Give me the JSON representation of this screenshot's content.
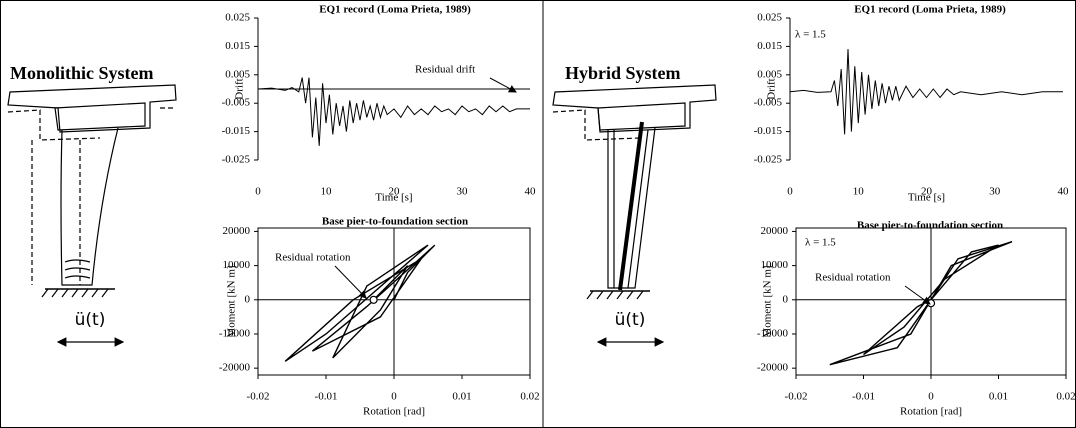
{
  "panels": [
    {
      "title": "Monolithic System",
      "excitation": "ü(t)"
    },
    {
      "title": "Hybrid System",
      "excitation": "ü(t)"
    }
  ],
  "chart_data": [
    {
      "type": "line",
      "title": "EQ1 record (Loma Prieta, 1989)",
      "x_label": "Time [s]",
      "y_label": "Drift",
      "xlim": [
        0,
        40
      ],
      "ylim": [
        -0.025,
        0.025
      ],
      "xticks": [
        0,
        10,
        20,
        30,
        40
      ],
      "yticks": [
        0.025,
        0.015,
        0.005,
        -0.005,
        -0.015,
        -0.025
      ],
      "frame": false,
      "zero_lines": true,
      "color": "#000000",
      "annotation": "Residual drift",
      "x": [
        0,
        2,
        4,
        5,
        6,
        6.5,
        7,
        7.5,
        8,
        8.5,
        9,
        9.5,
        10,
        10.5,
        11,
        11.5,
        12,
        12.5,
        13,
        13.5,
        14,
        14.5,
        15,
        15.5,
        16,
        16.5,
        17,
        17.5,
        18,
        18.5,
        19,
        20,
        21,
        22,
        23,
        24,
        25,
        26,
        27,
        28,
        29,
        30,
        31,
        32,
        33,
        34,
        35,
        36,
        37,
        38,
        39,
        40
      ],
      "values": [
        0,
        0.0003,
        -0.0005,
        0.0005,
        -0.001,
        0.004,
        -0.005,
        0.004,
        -0.017,
        -0.003,
        -0.02,
        0.002,
        -0.012,
        -0.002,
        -0.016,
        -0.005,
        -0.013,
        -0.006,
        -0.015,
        -0.004,
        -0.012,
        -0.005,
        -0.011,
        -0.004,
        -0.01,
        -0.006,
        -0.011,
        -0.005,
        -0.01,
        -0.006,
        -0.009,
        -0.007,
        -0.01,
        -0.006,
        -0.009,
        -0.007,
        -0.009,
        -0.006,
        -0.008,
        -0.007,
        -0.009,
        -0.006,
        -0.008,
        -0.007,
        -0.009,
        -0.006,
        -0.008,
        -0.006,
        -0.008,
        -0.007,
        -0.007,
        -0.007
      ]
    },
    {
      "type": "line",
      "title": "Base pier-to-foundation section",
      "x_label": "Rotation [rad]",
      "y_label": "Moment [kN m]",
      "xlim": [
        -0.02,
        0.02
      ],
      "ylim": [
        -22000,
        21000
      ],
      "xticks": [
        -0.02,
        -0.01,
        0,
        0.01,
        0.02
      ],
      "yticks": [
        20000,
        10000,
        0,
        -10000,
        -20000
      ],
      "frame": true,
      "zero_lines": true,
      "color": "#000000",
      "annotation": "Residual rotation",
      "residual_point": [
        -0.003,
        0
      ],
      "x": [
        0,
        0.002,
        0.006,
        -0.004,
        -0.012,
        -0.002,
        0.004,
        -0.006,
        -0.016,
        -0.01,
        0.005,
        -0.004,
        -0.009,
        -0.002,
        0.002,
        -0.003
      ],
      "values": [
        0,
        8000,
        16000,
        -2000,
        -15000,
        -5000,
        12000,
        0,
        -18000,
        -10000,
        16000,
        4000,
        -17000,
        -3000,
        10000,
        0
      ]
    },
    {
      "type": "line",
      "title": "EQ1 record (Loma Prieta, 1989)",
      "x_label": "Time [s]",
      "y_label": "Drift",
      "xlim": [
        0,
        40
      ],
      "ylim": [
        -0.025,
        0.025
      ],
      "xticks": [
        0,
        10,
        20,
        30,
        40
      ],
      "yticks": [
        0.025,
        0.015,
        0.005,
        -0.005,
        -0.015,
        -0.025
      ],
      "frame": false,
      "zero_lines": false,
      "color": "#000000",
      "annotation": "λ = 1.5",
      "x": [
        0,
        2,
        4,
        6,
        6.5,
        7,
        7.5,
        8,
        8.5,
        9,
        9.5,
        10,
        10.5,
        11,
        11.5,
        12,
        12.5,
        13,
        13.5,
        14,
        14.5,
        15,
        15.5,
        16,
        17,
        18,
        19,
        20,
        21,
        22,
        23,
        24,
        25,
        28,
        31,
        34,
        37,
        40
      ],
      "values": [
        -0.001,
        -0.0005,
        -0.0012,
        -0.001,
        0.003,
        -0.006,
        0.007,
        -0.016,
        0.014,
        -0.015,
        0.008,
        -0.012,
        0.006,
        -0.009,
        0.005,
        -0.007,
        0.003,
        -0.006,
        0.002,
        -0.005,
        0.001,
        -0.004,
        0.001,
        -0.004,
        0.001,
        -0.003,
        0,
        -0.003,
        0,
        -0.003,
        0,
        -0.002,
        -0.001,
        -0.002,
        -0.001,
        -0.002,
        -0.001,
        -0.001
      ]
    },
    {
      "type": "line",
      "title": "Base pier-to-foundation section",
      "x_label": "Rotation [rad]",
      "y_label": "Moment [kN m]",
      "xlim": [
        -0.02,
        0.02
      ],
      "ylim": [
        -22000,
        21000
      ],
      "xticks": [
        -0.02,
        -0.01,
        0,
        0.01,
        0.02
      ],
      "yticks": [
        20000,
        10000,
        0,
        -10000,
        -20000
      ],
      "frame": true,
      "zero_lines": true,
      "color": "#000000",
      "annotation": "λ = 1.5",
      "annotation2": "Residual rotation",
      "residual_point": [
        0,
        -1000
      ],
      "x": [
        0,
        0.003,
        0.012,
        0.004,
        0,
        -0.003,
        -0.015,
        -0.005,
        0,
        0.006,
        0.01,
        0.002,
        -0.004,
        -0.01,
        -0.002,
        0
      ],
      "values": [
        0,
        10000,
        17000,
        12000,
        0,
        -10000,
        -19000,
        -14000,
        0,
        14000,
        16000,
        6000,
        -8000,
        -16000,
        -2000,
        0
      ]
    }
  ]
}
